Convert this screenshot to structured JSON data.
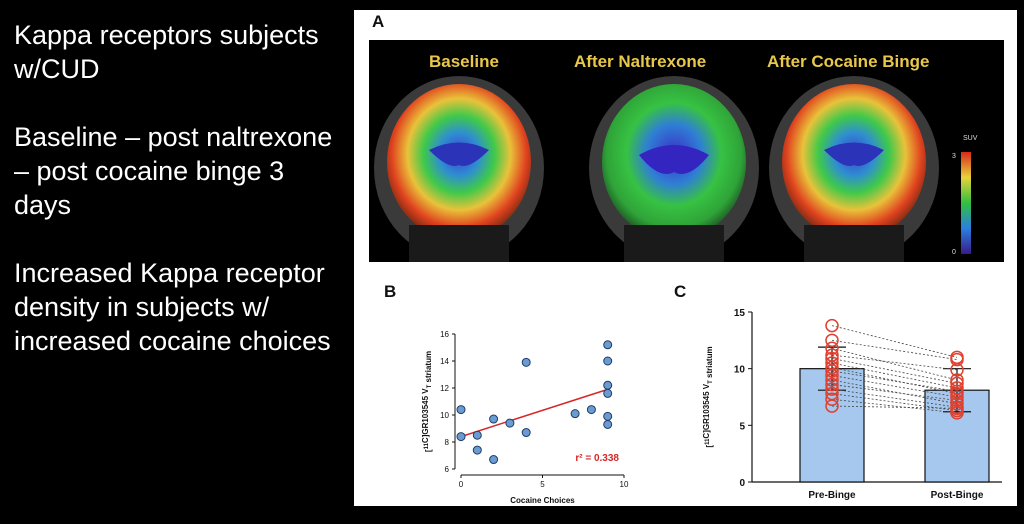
{
  "slide": {
    "bullets": [
      "Kappa receptors subjects w/CUD",
      "Baseline – post naltrexone – post cocaine binge 3 days",
      "Increased Kappa receptor density in subjects w/ increased cocaine choices"
    ]
  },
  "figure": {
    "panel_a": {
      "label": "A",
      "scan_titles": [
        "Baseline",
        "After Naltrexone",
        "After Cocaine Binge"
      ],
      "colorbar": {
        "label": "SUV",
        "max": "3",
        "min": "0"
      }
    },
    "panel_b": {
      "label": "B",
      "r2_text": "r² = 0.338"
    },
    "panel_c": {
      "label": "C"
    }
  },
  "chart_data": [
    {
      "type": "scatter",
      "xlabel": "Cocaine Choices",
      "ylabel": "[11C]GR103545 VT striatum",
      "xlim": [
        0,
        10
      ],
      "ylim": [
        6,
        16
      ],
      "xticks": [
        0,
        5,
        10
      ],
      "yticks": [
        6,
        8,
        10,
        12,
        14,
        16
      ],
      "points": [
        {
          "x": 0,
          "y": 10.4
        },
        {
          "x": 0,
          "y": 8.4
        },
        {
          "x": 1,
          "y": 8.5
        },
        {
          "x": 1,
          "y": 7.4
        },
        {
          "x": 2,
          "y": 9.7
        },
        {
          "x": 2,
          "y": 6.7
        },
        {
          "x": 3,
          "y": 9.4
        },
        {
          "x": 4,
          "y": 13.9
        },
        {
          "x": 4,
          "y": 8.7
        },
        {
          "x": 7,
          "y": 10.1
        },
        {
          "x": 8,
          "y": 10.4
        },
        {
          "x": 9,
          "y": 15.2
        },
        {
          "x": 9,
          "y": 14.0
        },
        {
          "x": 9,
          "y": 12.2
        },
        {
          "x": 9,
          "y": 11.6
        },
        {
          "x": 9,
          "y": 9.9
        },
        {
          "x": 9,
          "y": 9.3
        }
      ],
      "fit_line": {
        "x": [
          0,
          9
        ],
        "y": [
          8.4,
          11.9
        ]
      },
      "annotation": "r² = 0.338",
      "colors": {
        "points": "#6c9bd2",
        "line": "#d62728"
      }
    },
    {
      "type": "bar",
      "categories": [
        "Pre-Binge",
        "Post-Binge"
      ],
      "values": [
        10.0,
        8.1
      ],
      "error": [
        1.9,
        1.9
      ],
      "ylabel": "[11C]GR103545 VT striatum",
      "ylim": [
        0,
        15
      ],
      "yticks": [
        0,
        5,
        10,
        15
      ],
      "paired_points": [
        [
          13.8,
          11.0
        ],
        [
          12.5,
          10.8
        ],
        [
          11.8,
          9.0
        ],
        [
          11.2,
          9.9
        ],
        [
          10.9,
          8.7
        ],
        [
          10.5,
          8.3
        ],
        [
          10.1,
          7.8
        ],
        [
          9.8,
          8.0
        ],
        [
          9.4,
          7.5
        ],
        [
          9.0,
          6.9
        ],
        [
          8.6,
          7.2
        ],
        [
          8.2,
          6.6
        ],
        [
          7.8,
          6.3
        ],
        [
          7.3,
          6.1
        ],
        [
          6.7,
          6.5
        ]
      ],
      "colors": {
        "bars": "#a7c8ee",
        "points": "#e0402f"
      }
    }
  ]
}
